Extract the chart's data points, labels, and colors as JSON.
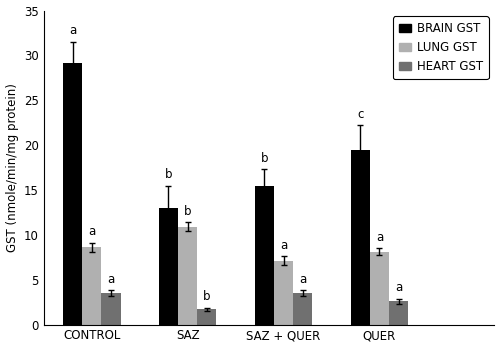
{
  "categories": [
    "CONTROL",
    "SAZ",
    "SAZ + QUER",
    "QUER"
  ],
  "brain_gst": [
    29.2,
    13.0,
    15.5,
    19.5
  ],
  "lung_gst": [
    8.6,
    10.9,
    7.1,
    8.1
  ],
  "heart_gst": [
    3.5,
    1.7,
    3.5,
    2.6
  ],
  "brain_err": [
    2.3,
    2.5,
    1.8,
    2.7
  ],
  "lung_err": [
    0.5,
    0.5,
    0.5,
    0.4
  ],
  "heart_err": [
    0.3,
    0.2,
    0.3,
    0.3
  ],
  "brain_labels": [
    "a",
    "b",
    "b",
    "c"
  ],
  "lung_labels": [
    "a",
    "b",
    "a",
    "a"
  ],
  "heart_labels": [
    "a",
    "b",
    "a",
    "a"
  ],
  "bar_colors": [
    "#000000",
    "#b0b0b0",
    "#707070"
  ],
  "legend_labels": [
    "BRAIN GST",
    "LUNG GST",
    "HEART GST"
  ],
  "ylabel": "GST (nmole/min/mg protein)",
  "ylim": [
    0,
    35
  ],
  "yticks": [
    0,
    5,
    10,
    15,
    20,
    25,
    30,
    35
  ],
  "bar_width": 0.2,
  "label_fontsize": 8.5,
  "tick_fontsize": 8.5,
  "legend_fontsize": 8.5,
  "annot_fontsize": 8.5
}
